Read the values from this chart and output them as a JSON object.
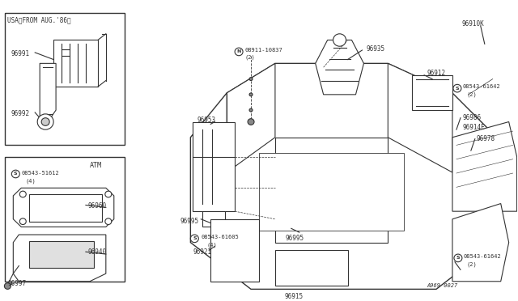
{
  "bg_color": "#ffffff",
  "line_color": "#333333",
  "text_color": "#333333",
  "title_bottom": "A969 0027",
  "box1_title": "USA（FROM AUG.’86）",
  "box2_title": "ATM",
  "fig_width": 6.4,
  "fig_height": 3.72,
  "dpi": 100
}
